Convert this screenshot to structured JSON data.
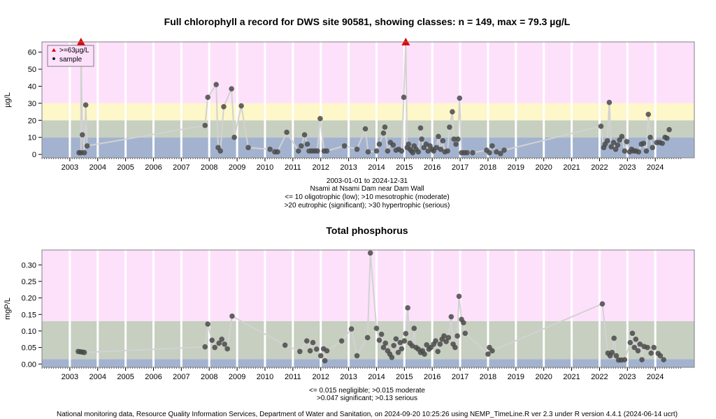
{
  "chart_data": [
    {
      "type": "scatter",
      "title": "Full chlorophyll a record for DWS site 90581, showing classes: n = 149, max = 79.3 µg/L",
      "ylabel": "µg/L",
      "ylim": [
        -2,
        66
      ],
      "xlim": [
        2002.0,
        2025.4
      ],
      "yticks": [
        0,
        10,
        20,
        30,
        40,
        50,
        60
      ],
      "year_ticks": [
        "2003",
        "2004",
        "2005",
        "2006",
        "2007",
        "2008",
        "2009",
        "2010",
        "2011",
        "2012",
        "2013",
        "2014",
        "2015",
        "2016",
        "2017",
        "2018",
        "2019",
        "2020",
        "2021",
        "2022",
        "2023",
        "2024"
      ],
      "bands": [
        {
          "from": -2,
          "to": 10,
          "color": "#a3b3cf"
        },
        {
          "from": 10,
          "to": 20,
          "color": "#c6cfc0"
        },
        {
          "from": 20,
          "to": 30,
          "color": "#fdf7c9"
        },
        {
          "from": 30,
          "to": 66,
          "color": "#fde1fb"
        }
      ],
      "legend": {
        "position": "top-left",
        "items": [
          {
            "label": ">=63µg/L",
            "marker": "red-triangle"
          },
          {
            "label": "sample",
            "marker": "dark-dot"
          }
        ]
      },
      "caption_lines": [
        "2003-01-01 to 2024-12-31",
        "Nsami at Nsami Dam near Dam Wall",
        "<= 10 oligotrophic (low); >10 mesotrophic (moderate)",
        ">20 eutrophic (significant); >30 hypertrophic (serious)"
      ],
      "above_cap": [
        {
          "x": 2003.4,
          "y": 79.3
        },
        {
          "x": 2015.05,
          "y": 79.3
        }
      ],
      "points": [
        {
          "x": 2003.33,
          "y": 1
        },
        {
          "x": 2003.4,
          "y": 1
        },
        {
          "x": 2003.45,
          "y": 11.5
        },
        {
          "x": 2003.52,
          "y": 1
        },
        {
          "x": 2003.57,
          "y": 29
        },
        {
          "x": 2003.62,
          "y": 5
        },
        {
          "x": 2007.85,
          "y": 17
        },
        {
          "x": 2007.95,
          "y": 33.5
        },
        {
          "x": 2008.25,
          "y": 41
        },
        {
          "x": 2008.32,
          "y": 4
        },
        {
          "x": 2008.4,
          "y": 2
        },
        {
          "x": 2008.52,
          "y": 28
        },
        {
          "x": 2008.8,
          "y": 38.5
        },
        {
          "x": 2008.9,
          "y": 10
        },
        {
          "x": 2009.15,
          "y": 28.5
        },
        {
          "x": 2009.4,
          "y": 4
        },
        {
          "x": 2010.18,
          "y": 3
        },
        {
          "x": 2010.35,
          "y": 1.5
        },
        {
          "x": 2010.45,
          "y": 1.5
        },
        {
          "x": 2010.78,
          "y": 13
        },
        {
          "x": 2011.2,
          "y": 2
        },
        {
          "x": 2011.3,
          "y": 5
        },
        {
          "x": 2011.42,
          "y": 11.5
        },
        {
          "x": 2011.52,
          "y": 6
        },
        {
          "x": 2011.58,
          "y": 2
        },
        {
          "x": 2011.68,
          "y": 2
        },
        {
          "x": 2011.78,
          "y": 2
        },
        {
          "x": 2011.88,
          "y": 2
        },
        {
          "x": 2011.98,
          "y": 21
        },
        {
          "x": 2012.12,
          "y": 2
        },
        {
          "x": 2012.22,
          "y": 2
        },
        {
          "x": 2012.85,
          "y": 5
        },
        {
          "x": 2013.3,
          "y": 3
        },
        {
          "x": 2013.6,
          "y": 15
        },
        {
          "x": 2013.7,
          "y": 1.5
        },
        {
          "x": 2014.0,
          "y": 2
        },
        {
          "x": 2014.1,
          "y": 6
        },
        {
          "x": 2014.25,
          "y": 12.5
        },
        {
          "x": 2014.3,
          "y": 16
        },
        {
          "x": 2014.4,
          "y": 2
        },
        {
          "x": 2014.5,
          "y": 7
        },
        {
          "x": 2014.6,
          "y": 5.5
        },
        {
          "x": 2014.7,
          "y": 2.5
        },
        {
          "x": 2014.8,
          "y": 3
        },
        {
          "x": 2014.9,
          "y": 2
        },
        {
          "x": 2014.98,
          "y": 33.5
        },
        {
          "x": 2015.1,
          "y": 4
        },
        {
          "x": 2015.15,
          "y": 6
        },
        {
          "x": 2015.2,
          "y": 3
        },
        {
          "x": 2015.25,
          "y": 2
        },
        {
          "x": 2015.3,
          "y": 1
        },
        {
          "x": 2015.35,
          "y": 5
        },
        {
          "x": 2015.42,
          "y": 3
        },
        {
          "x": 2015.5,
          "y": 1.5
        },
        {
          "x": 2015.58,
          "y": 15.5
        },
        {
          "x": 2015.62,
          "y": 9
        },
        {
          "x": 2015.7,
          "y": 4
        },
        {
          "x": 2015.78,
          "y": 6
        },
        {
          "x": 2015.85,
          "y": 2
        },
        {
          "x": 2015.92,
          "y": 5
        },
        {
          "x": 2016.0,
          "y": 3
        },
        {
          "x": 2016.05,
          "y": 2
        },
        {
          "x": 2016.15,
          "y": 4
        },
        {
          "x": 2016.22,
          "y": 10.5
        },
        {
          "x": 2016.3,
          "y": 3
        },
        {
          "x": 2016.38,
          "y": 8
        },
        {
          "x": 2016.45,
          "y": 1.5
        },
        {
          "x": 2016.55,
          "y": 2
        },
        {
          "x": 2016.62,
          "y": 16
        },
        {
          "x": 2016.72,
          "y": 25
        },
        {
          "x": 2016.78,
          "y": 9
        },
        {
          "x": 2016.85,
          "y": 6
        },
        {
          "x": 2016.92,
          "y": 9
        },
        {
          "x": 2016.98,
          "y": 33
        },
        {
          "x": 2017.05,
          "y": 1
        },
        {
          "x": 2017.15,
          "y": 1
        },
        {
          "x": 2017.25,
          "y": 1
        },
        {
          "x": 2017.45,
          "y": 1
        },
        {
          "x": 2017.95,
          "y": 2.5
        },
        {
          "x": 2018.05,
          "y": 1
        },
        {
          "x": 2018.15,
          "y": 5
        },
        {
          "x": 2018.3,
          "y": 1.5
        },
        {
          "x": 2018.45,
          "y": 0.5
        },
        {
          "x": 2018.58,
          "y": 2.5
        },
        {
          "x": 2022.05,
          "y": 16.5
        },
        {
          "x": 2022.15,
          "y": 4
        },
        {
          "x": 2022.2,
          "y": 6
        },
        {
          "x": 2022.28,
          "y": 8
        },
        {
          "x": 2022.35,
          "y": 30.5
        },
        {
          "x": 2022.42,
          "y": 4.5
        },
        {
          "x": 2022.5,
          "y": 7
        },
        {
          "x": 2022.58,
          "y": 3
        },
        {
          "x": 2022.65,
          "y": 5.5
        },
        {
          "x": 2022.72,
          "y": 8.5
        },
        {
          "x": 2022.8,
          "y": 10.5
        },
        {
          "x": 2022.9,
          "y": 2
        },
        {
          "x": 2022.98,
          "y": 7.5
        },
        {
          "x": 2023.08,
          "y": 1.5
        },
        {
          "x": 2023.15,
          "y": 3
        },
        {
          "x": 2023.22,
          "y": 2
        },
        {
          "x": 2023.3,
          "y": 2
        },
        {
          "x": 2023.4,
          "y": 1.5
        },
        {
          "x": 2023.5,
          "y": 6
        },
        {
          "x": 2023.58,
          "y": 6.5
        },
        {
          "x": 2023.68,
          "y": 2
        },
        {
          "x": 2023.75,
          "y": 23.5
        },
        {
          "x": 2023.82,
          "y": 10
        },
        {
          "x": 2023.9,
          "y": 4
        },
        {
          "x": 2024.05,
          "y": 7
        },
        {
          "x": 2024.15,
          "y": 7
        },
        {
          "x": 2024.25,
          "y": 6.5
        },
        {
          "x": 2024.35,
          "y": 10
        },
        {
          "x": 2024.42,
          "y": 9.5
        },
        {
          "x": 2024.5,
          "y": 14.5
        }
      ]
    },
    {
      "type": "scatter",
      "title": "Total phosphorus",
      "ylabel": "mgP/L",
      "ylim": [
        -0.01,
        0.345
      ],
      "xlim": [
        2002.0,
        2025.4
      ],
      "yticks": [
        "0.00",
        "0.05",
        "0.10",
        "0.15",
        "0.20",
        "0.25",
        "0.30"
      ],
      "year_ticks": [
        "2003",
        "2004",
        "2005",
        "2006",
        "2007",
        "2008",
        "2009",
        "2010",
        "2011",
        "2012",
        "2013",
        "2014",
        "2015",
        "2016",
        "2017",
        "2018",
        "2019",
        "2020",
        "2021",
        "2022",
        "2023",
        "2024"
      ],
      "bands": [
        {
          "from": -0.01,
          "to": 0.015,
          "color": "#a3b3cf"
        },
        {
          "from": 0.015,
          "to": 0.13,
          "color": "#c6cfc0"
        },
        {
          "from": 0.13,
          "to": 0.345,
          "color": "#fde1fb"
        }
      ],
      "caption_lines": [
        "<= 0.015 negligible; >0.015 moderate",
        ">0.047 significant; >0.13 serious"
      ],
      "points": [
        {
          "x": 2003.3,
          "y": 0.038
        },
        {
          "x": 2003.38,
          "y": 0.037
        },
        {
          "x": 2003.45,
          "y": 0.036
        },
        {
          "x": 2003.52,
          "y": 0.035
        },
        {
          "x": 2007.85,
          "y": 0.052
        },
        {
          "x": 2007.95,
          "y": 0.121
        },
        {
          "x": 2008.1,
          "y": 0.072
        },
        {
          "x": 2008.2,
          "y": 0.05
        },
        {
          "x": 2008.35,
          "y": 0.063
        },
        {
          "x": 2008.45,
          "y": 0.075
        },
        {
          "x": 2008.55,
          "y": 0.06
        },
        {
          "x": 2008.65,
          "y": 0.046
        },
        {
          "x": 2008.82,
          "y": 0.145
        },
        {
          "x": 2010.72,
          "y": 0.057
        },
        {
          "x": 2011.25,
          "y": 0.038
        },
        {
          "x": 2011.5,
          "y": 0.07
        },
        {
          "x": 2011.62,
          "y": 0.04
        },
        {
          "x": 2011.72,
          "y": 0.065
        },
        {
          "x": 2011.85,
          "y": 0.045
        },
        {
          "x": 2012.0,
          "y": 0.025
        },
        {
          "x": 2012.1,
          "y": 0.046
        },
        {
          "x": 2012.15,
          "y": 0.01
        },
        {
          "x": 2012.22,
          "y": 0.04
        },
        {
          "x": 2012.75,
          "y": 0.07
        },
        {
          "x": 2013.1,
          "y": 0.106
        },
        {
          "x": 2013.3,
          "y": 0.025
        },
        {
          "x": 2013.68,
          "y": 0.08
        },
        {
          "x": 2013.78,
          "y": 0.336
        },
        {
          "x": 2014.0,
          "y": 0.108
        },
        {
          "x": 2014.1,
          "y": 0.072
        },
        {
          "x": 2014.18,
          "y": 0.09
        },
        {
          "x": 2014.25,
          "y": 0.05
        },
        {
          "x": 2014.32,
          "y": 0.063
        },
        {
          "x": 2014.4,
          "y": 0.04
        },
        {
          "x": 2014.48,
          "y": 0.03
        },
        {
          "x": 2014.55,
          "y": 0.02
        },
        {
          "x": 2014.62,
          "y": 0.056
        },
        {
          "x": 2014.7,
          "y": 0.076
        },
        {
          "x": 2014.78,
          "y": 0.035
        },
        {
          "x": 2014.85,
          "y": 0.065
        },
        {
          "x": 2014.9,
          "y": 0.046
        },
        {
          "x": 2015.0,
          "y": 0.07
        },
        {
          "x": 2015.05,
          "y": 0.092
        },
        {
          "x": 2015.12,
          "y": 0.17
        },
        {
          "x": 2015.2,
          "y": 0.063
        },
        {
          "x": 2015.28,
          "y": 0.055
        },
        {
          "x": 2015.35,
          "y": 0.108
        },
        {
          "x": 2015.42,
          "y": 0.05
        },
        {
          "x": 2015.5,
          "y": 0.045
        },
        {
          "x": 2015.58,
          "y": 0.035
        },
        {
          "x": 2015.65,
          "y": 0.04
        },
        {
          "x": 2015.72,
          "y": 0.03
        },
        {
          "x": 2015.8,
          "y": 0.058
        },
        {
          "x": 2015.88,
          "y": 0.045
        },
        {
          "x": 2015.95,
          "y": 0.05
        },
        {
          "x": 2016.05,
          "y": 0.06
        },
        {
          "x": 2016.12,
          "y": 0.07
        },
        {
          "x": 2016.2,
          "y": 0.038
        },
        {
          "x": 2016.28,
          "y": 0.06
        },
        {
          "x": 2016.35,
          "y": 0.075
        },
        {
          "x": 2016.42,
          "y": 0.085
        },
        {
          "x": 2016.5,
          "y": 0.068
        },
        {
          "x": 2016.58,
          "y": 0.08
        },
        {
          "x": 2016.68,
          "y": 0.143
        },
        {
          "x": 2016.75,
          "y": 0.06
        },
        {
          "x": 2016.82,
          "y": 0.05
        },
        {
          "x": 2016.9,
          "y": 0.085
        },
        {
          "x": 2016.96,
          "y": 0.205
        },
        {
          "x": 2017.05,
          "y": 0.135
        },
        {
          "x": 2017.12,
          "y": 0.125
        },
        {
          "x": 2017.18,
          "y": 0.093
        },
        {
          "x": 2018.0,
          "y": 0.03
        },
        {
          "x": 2018.05,
          "y": 0.05
        },
        {
          "x": 2018.15,
          "y": 0.04
        },
        {
          "x": 2022.1,
          "y": 0.182
        },
        {
          "x": 2022.3,
          "y": 0.033
        },
        {
          "x": 2022.38,
          "y": 0.025
        },
        {
          "x": 2022.45,
          "y": 0.035
        },
        {
          "x": 2022.52,
          "y": 0.078
        },
        {
          "x": 2022.6,
          "y": 0.025
        },
        {
          "x": 2022.68,
          "y": 0.012
        },
        {
          "x": 2022.78,
          "y": 0.012
        },
        {
          "x": 2022.9,
          "y": 0.013
        },
        {
          "x": 2023.1,
          "y": 0.065
        },
        {
          "x": 2023.18,
          "y": 0.093
        },
        {
          "x": 2023.25,
          "y": 0.05
        },
        {
          "x": 2023.3,
          "y": 0.075
        },
        {
          "x": 2023.38,
          "y": 0.04
        },
        {
          "x": 2023.45,
          "y": 0.06
        },
        {
          "x": 2023.52,
          "y": 0.013
        },
        {
          "x": 2023.6,
          "y": 0.053
        },
        {
          "x": 2023.72,
          "y": 0.05
        },
        {
          "x": 2023.85,
          "y": 0.033
        },
        {
          "x": 2023.95,
          "y": 0.05
        },
        {
          "x": 2024.1,
          "y": 0.032
        },
        {
          "x": 2024.18,
          "y": 0.025
        },
        {
          "x": 2024.3,
          "y": 0.013
        }
      ]
    }
  ],
  "footer": "National monitoring data, Resource Quality Information Services, Department of Water and Sanitation, on 2024-09-20 10:25:26 using NEMP_TimeLine.R ver 2.3 under R version 4.4.1 (2024-06-14 ucrt)",
  "colors": {
    "points": "#4a4a4a",
    "line": "#d2d2d2",
    "cap_marker": "#e00000",
    "grid": "#ffffff",
    "frame": "#808080"
  }
}
